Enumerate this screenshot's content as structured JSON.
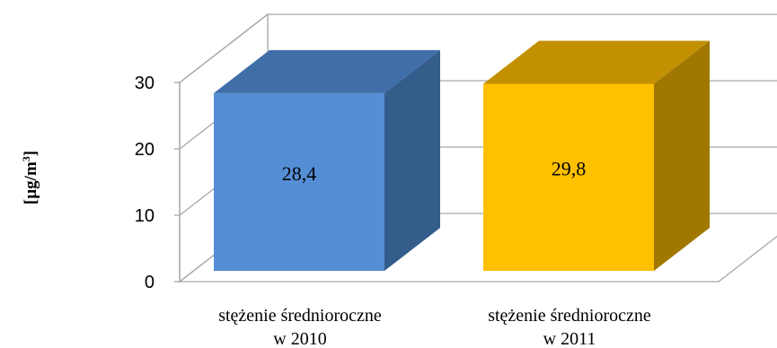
{
  "chart_data": {
    "type": "bar",
    "style": "3d",
    "categories": [
      [
        "stężenie średnioroczne",
        "w 2010"
      ],
      [
        "stężenie średnioroczne",
        "w 2011"
      ]
    ],
    "values": [
      28.4,
      29.8
    ],
    "value_labels": [
      "28,4",
      "29,8"
    ],
    "ylabel": "[µg/m",
    "ylabel_sup": "3",
    "ylabel_close": "]",
    "ylim": [
      0,
      30
    ],
    "yticks": [
      0,
      10,
      20,
      30
    ],
    "ytick_labels": [
      "0",
      "10",
      "20",
      "30"
    ],
    "grid": true,
    "colors": [
      {
        "front": "#558ed5",
        "top": "#3f6ea8",
        "side": "#345d8c"
      },
      {
        "front": "#ffc000",
        "top": "#c29000",
        "side": "#a07800"
      }
    ],
    "axis_color": "#a6a6a6"
  }
}
